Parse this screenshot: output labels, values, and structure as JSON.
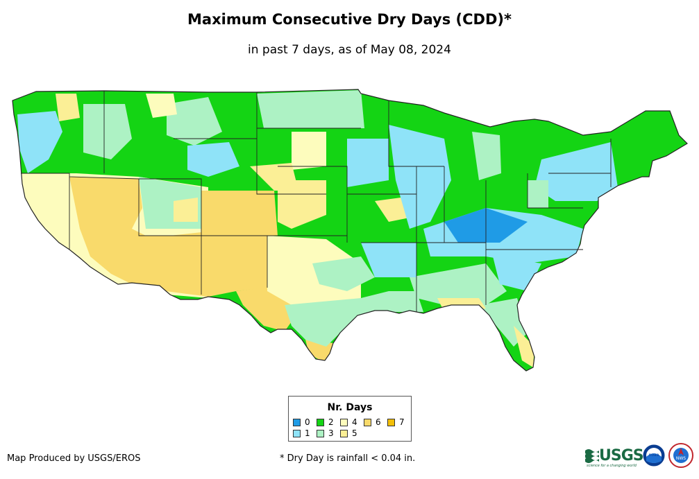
{
  "title": "Maximum Consecutive Dry Days (CDD)*",
  "subtitle": "in past 7 days, as of May 08, 2024",
  "legend": {
    "title": "Nr. Days",
    "items": [
      {
        "label": "0",
        "color": "#1f9be6"
      },
      {
        "label": "1",
        "color": "#8fe3f8"
      },
      {
        "label": "2",
        "color": "#14d414"
      },
      {
        "label": "3",
        "color": "#adf2c4"
      },
      {
        "label": "4",
        "color": "#fdfcbd"
      },
      {
        "label": "5",
        "color": "#fbef96"
      },
      {
        "label": "6",
        "color": "#f9da6b"
      },
      {
        "label": "7",
        "color": "#f3bf08"
      }
    ]
  },
  "credit": "Map Produced by USGS/EROS",
  "footnote": "* Dry Day is rainfall < 0.04 in.",
  "logos": {
    "usgs_text": "USGS",
    "usgs_tagline": "science for a changing world",
    "noaa_text": "noaa",
    "nws_text": "NWS"
  }
}
